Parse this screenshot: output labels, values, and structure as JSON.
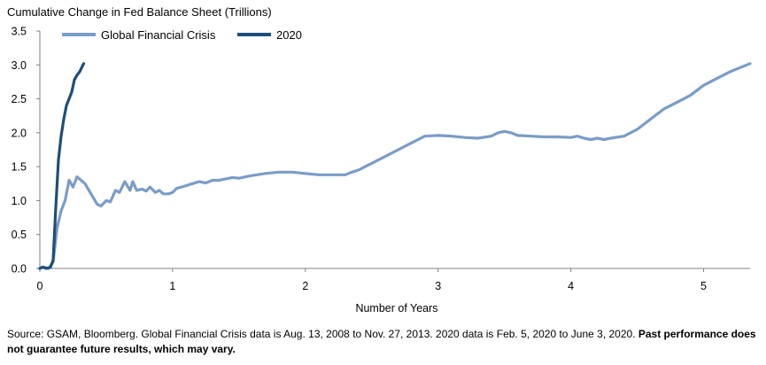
{
  "chart_data": {
    "type": "line",
    "title": "Cumulative Change in Fed Balance Sheet (Trillions)",
    "xlabel": "Number of Years",
    "ylabel": "",
    "xlim": [
      0,
      5.35
    ],
    "ylim": [
      0,
      3.5
    ],
    "x_ticks": [
      "0",
      "1",
      "2",
      "3",
      "4",
      "5"
    ],
    "y_ticks": [
      "0.0",
      "0.5",
      "1.0",
      "1.5",
      "2.0",
      "2.5",
      "3.0",
      "3.5"
    ],
    "grid": false,
    "legend_position": "top-left",
    "series": [
      {
        "name": "Global Financial Crisis",
        "color": "#7a9cc8",
        "x": [
          0,
          0.03,
          0.07,
          0.1,
          0.13,
          0.16,
          0.19,
          0.22,
          0.25,
          0.28,
          0.31,
          0.34,
          0.37,
          0.4,
          0.43,
          0.46,
          0.5,
          0.53,
          0.57,
          0.6,
          0.64,
          0.68,
          0.7,
          0.73,
          0.77,
          0.8,
          0.83,
          0.87,
          0.9,
          0.93,
          0.97,
          1.0,
          1.03,
          1.07,
          1.1,
          1.15,
          1.2,
          1.25,
          1.3,
          1.35,
          1.4,
          1.45,
          1.5,
          1.55,
          1.6,
          1.7,
          1.8,
          1.9,
          2.0,
          2.1,
          2.2,
          2.3,
          2.35,
          2.4,
          2.45,
          2.5,
          2.55,
          2.6,
          2.7,
          2.8,
          2.9,
          3.0,
          3.1,
          3.2,
          3.3,
          3.4,
          3.45,
          3.5,
          3.55,
          3.6,
          3.7,
          3.8,
          3.9,
          4.0,
          4.05,
          4.1,
          4.15,
          4.2,
          4.25,
          4.3,
          4.4,
          4.5,
          4.6,
          4.7,
          4.8,
          4.9,
          5.0,
          5.1,
          5.2,
          5.3,
          5.35
        ],
        "y": [
          0.0,
          0.02,
          0.0,
          0.1,
          0.6,
          0.85,
          1.0,
          1.3,
          1.2,
          1.35,
          1.3,
          1.25,
          1.15,
          1.05,
          0.95,
          0.92,
          1.0,
          0.98,
          1.15,
          1.12,
          1.28,
          1.15,
          1.28,
          1.15,
          1.17,
          1.14,
          1.2,
          1.12,
          1.15,
          1.1,
          1.1,
          1.12,
          1.18,
          1.2,
          1.22,
          1.25,
          1.28,
          1.26,
          1.3,
          1.3,
          1.32,
          1.34,
          1.33,
          1.35,
          1.37,
          1.4,
          1.42,
          1.42,
          1.4,
          1.38,
          1.38,
          1.38,
          1.42,
          1.45,
          1.5,
          1.55,
          1.6,
          1.65,
          1.75,
          1.85,
          1.95,
          1.96,
          1.95,
          1.93,
          1.92,
          1.95,
          2.0,
          2.02,
          2.0,
          1.96,
          1.95,
          1.94,
          1.94,
          1.93,
          1.95,
          1.92,
          1.9,
          1.92,
          1.9,
          1.92,
          1.95,
          2.05,
          2.2,
          2.35,
          2.45,
          2.55,
          2.7,
          2.8,
          2.9,
          2.98,
          3.02
        ]
      },
      {
        "name": "2020",
        "color": "#1f4e79",
        "x": [
          0,
          0.02,
          0.05,
          0.08,
          0.1,
          0.12,
          0.14,
          0.16,
          0.18,
          0.2,
          0.22,
          0.24,
          0.26,
          0.28,
          0.3,
          0.32,
          0.33
        ],
        "y": [
          0.0,
          0.02,
          0.0,
          0.02,
          0.12,
          0.9,
          1.6,
          1.95,
          2.2,
          2.4,
          2.5,
          2.6,
          2.78,
          2.85,
          2.9,
          2.98,
          3.02
        ]
      }
    ]
  },
  "footnote": {
    "source_text": "Source: GSAM, Bloomberg. Global Financial Crisis data is Aug. 13, 2008 to Nov. 27, 2013. 2020 data is Feb. 5, 2020 to June 3, 2020. ",
    "disclaimer": "Past performance does not guarantee future results, which may vary."
  }
}
